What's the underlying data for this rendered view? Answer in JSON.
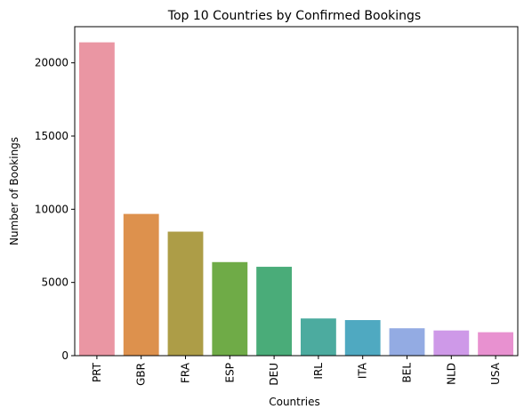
{
  "chart_data": {
    "type": "bar",
    "title": "Top 10 Countries by Confirmed Bookings",
    "xlabel": "Countries",
    "ylabel": "Number of Bookings",
    "categories": [
      "PRT",
      "GBR",
      "FRA",
      "ESP",
      "DEU",
      "IRL",
      "ITA",
      "BEL",
      "NLD",
      "USA"
    ],
    "values": [
      21400,
      9680,
      8470,
      6390,
      6070,
      2540,
      2430,
      1870,
      1720,
      1600
    ],
    "colors": [
      "#ea96a3",
      "#dd914d",
      "#ad9d47",
      "#6fab47",
      "#4aac79",
      "#4cab9f",
      "#4fa9c1",
      "#93abe3",
      "#ce99e8",
      "#e891d0"
    ],
    "ylim": [
      0,
      22470
    ],
    "yticks": [
      0,
      5000,
      10000,
      15000,
      20000
    ],
    "ytick_labels": [
      "0",
      "5000",
      "10000",
      "15000",
      "20000"
    ],
    "grid": false,
    "legend": "none"
  }
}
